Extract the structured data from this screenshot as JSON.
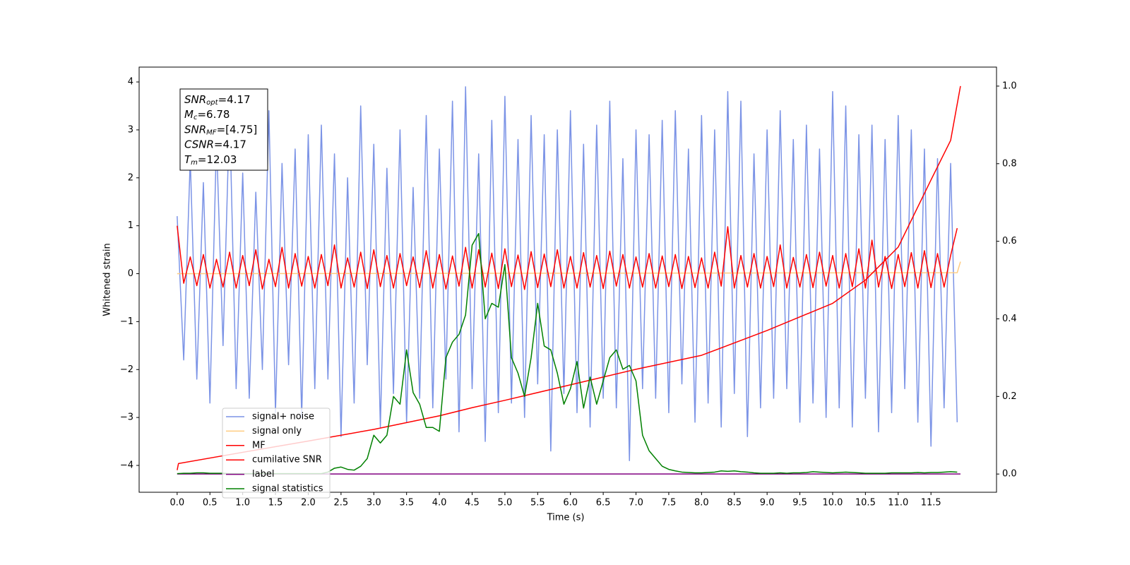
{
  "chart_data": {
    "type": "line",
    "xlabel": "Time (s)",
    "ylabel": "Whitened strain",
    "xlim": [
      -0.58,
      12.5
    ],
    "ylim": [
      -4.56,
      4.31
    ],
    "y2lim": [
      -0.047,
      1.049
    ],
    "xticks": [
      {
        "value": 0,
        "label": "0.0"
      },
      0.5,
      {
        "value": 1,
        "label": "1.0"
      },
      1.5,
      {
        "value": 2,
        "label": "2.0"
      },
      2.5,
      {
        "value": 3,
        "label": "3.0"
      },
      3.5,
      {
        "value": 4,
        "label": "4.0"
      },
      4.5,
      {
        "value": 5,
        "label": "5.0"
      },
      5.5,
      {
        "value": 6,
        "label": "6.0"
      },
      6.5,
      {
        "value": 7,
        "label": "7.0"
      },
      7.5,
      {
        "value": 8,
        "label": "8.0"
      },
      8.5,
      {
        "value": 9,
        "label": "9.0"
      },
      9.5,
      {
        "value": 10,
        "label": "10.0"
      },
      10.5,
      {
        "value": 11,
        "label": "11.0"
      },
      11.5
    ],
    "yticks": [
      {
        "value": -4,
        "label": "−4"
      },
      {
        "value": -3,
        "label": "−3"
      },
      {
        "value": -2,
        "label": "−2"
      },
      {
        "value": -1,
        "label": "−1"
      },
      0,
      1,
      2,
      3,
      4
    ],
    "y2ticks": [
      {
        "value": 0,
        "label": "0.0"
      },
      0.2,
      0.4,
      0.6,
      0.8,
      {
        "value": 1,
        "label": "1.0"
      }
    ],
    "legend_position": "lower left",
    "annotations": [
      {
        "name": "SNR",
        "sub": "opt",
        "text": "=4.17"
      },
      {
        "name": "M",
        "sub": "c",
        "text": "=6.78"
      },
      {
        "name": "SNR",
        "sub": "MF",
        "text": "=[4.75]"
      },
      {
        "name": "CSNR",
        "text": "=4.17"
      },
      {
        "name": "T",
        "sub": "m",
        "text": "=12.03"
      }
    ],
    "x": [
      0,
      0.1,
      0.2,
      0.3,
      0.4,
      0.5,
      0.6,
      0.7,
      0.8,
      0.9,
      1,
      1.1,
      1.2,
      1.3,
      1.4,
      1.5,
      1.6,
      1.7,
      1.8,
      1.9,
      2,
      2.1,
      2.2,
      2.3,
      2.4,
      2.5,
      2.6,
      2.7,
      2.8,
      2.9,
      3,
      3.1,
      3.2,
      3.3,
      3.4,
      3.5,
      3.6,
      3.7,
      3.8,
      3.9,
      4,
      4.1,
      4.2,
      4.3,
      4.4,
      4.5,
      4.6,
      4.7,
      4.8,
      4.9,
      5,
      5.1,
      5.2,
      5.3,
      5.4,
      5.5,
      5.6,
      5.7,
      5.8,
      5.9,
      6,
      6.1,
      6.2,
      6.3,
      6.4,
      6.5,
      6.6,
      6.7,
      6.8,
      6.9,
      7,
      7.1,
      7.2,
      7.3,
      7.4,
      7.5,
      7.6,
      7.7,
      7.8,
      7.9,
      8,
      8.1,
      8.2,
      8.3,
      8.4,
      8.5,
      8.6,
      8.7,
      8.8,
      8.9,
      9,
      9.1,
      9.2,
      9.3,
      9.4,
      9.5,
      9.6,
      9.7,
      9.8,
      9.9,
      10,
      10.1,
      10.2,
      10.3,
      10.4,
      10.5,
      10.6,
      10.7,
      10.8,
      10.9,
      11,
      11.1,
      11.2,
      11.3,
      11.4,
      11.5,
      11.6,
      11.7,
      11.8,
      11.9
    ],
    "series": [
      {
        "name": "signal+ noise",
        "color": "#7b93e6",
        "values": [
          1.2,
          -1.8,
          2.4,
          -2.2,
          1.9,
          -2.7,
          2.8,
          -1.5,
          3.4,
          -2.4,
          2.1,
          -2.6,
          1.7,
          -2.0,
          3.4,
          -2.9,
          2.3,
          -1.9,
          2.6,
          -3.0,
          2.9,
          -2.4,
          3.1,
          -2.2,
          2.5,
          -3.4,
          2.0,
          -2.7,
          3.5,
          -1.9,
          2.7,
          -3.2,
          2.2,
          -2.5,
          3.0,
          -3.1,
          1.8,
          -2.6,
          3.3,
          -2.8,
          2.6,
          -2.2,
          3.6,
          -3.3,
          3.9,
          -2.4,
          2.5,
          -3.5,
          3.2,
          -2.9,
          3.7,
          -2.7,
          2.8,
          -3.0,
          3.3,
          -2.3,
          2.9,
          -3.7,
          3.0,
          -2.5,
          3.4,
          -2.9,
          2.7,
          -3.2,
          3.1,
          -2.6,
          3.6,
          -2.8,
          2.4,
          -3.9,
          3.0,
          -2.4,
          2.9,
          -2.6,
          3.2,
          -2.9,
          3.4,
          -2.3,
          2.6,
          -3.1,
          3.3,
          -2.7,
          3.0,
          -3.2,
          3.8,
          -2.5,
          3.6,
          -3.4,
          2.5,
          -2.8,
          3.0,
          -2.6,
          3.4,
          -2.4,
          2.8,
          -3.1,
          3.1,
          -2.7,
          2.6,
          -3.0,
          3.8,
          -2.8,
          3.5,
          -3.2,
          2.9,
          -2.6,
          3.1,
          -3.3,
          2.8,
          -2.9,
          3.3,
          -2.4,
          3.0,
          -3.1,
          2.6,
          -3.6,
          2.4,
          -2.8,
          2.3,
          -3.1
        ]
      },
      {
        "name": "signal only",
        "color": "#ffcc80",
        "x": [
          0,
          11.9,
          11.95
        ],
        "values": [
          0,
          0.02,
          0.25
        ]
      },
      {
        "name": "MF",
        "color": "#ff0000",
        "values": [
          1.0,
          -0.2,
          0.35,
          -0.25,
          0.4,
          -0.3,
          0.3,
          -0.28,
          0.45,
          -0.3,
          0.38,
          -0.25,
          0.5,
          -0.32,
          0.3,
          -0.27,
          0.55,
          -0.3,
          0.42,
          -0.26,
          0.36,
          -0.3,
          0.4,
          -0.25,
          0.6,
          -0.3,
          0.33,
          -0.28,
          0.45,
          -0.31,
          0.5,
          -0.27,
          0.38,
          -0.3,
          0.42,
          -0.25,
          0.35,
          -0.29,
          0.48,
          -0.3,
          0.4,
          -0.32,
          0.37,
          -0.26,
          0.55,
          -0.3,
          0.5,
          -0.28,
          0.43,
          -0.31,
          0.52,
          -0.27,
          0.39,
          -0.33,
          0.46,
          -0.29,
          0.41,
          -0.27,
          0.5,
          -0.3,
          0.36,
          -0.3,
          0.44,
          -0.28,
          0.38,
          -0.31,
          0.47,
          -0.26,
          0.4,
          -0.3,
          0.35,
          -0.28,
          0.42,
          -0.3,
          0.37,
          -0.27,
          0.4,
          -0.31,
          0.36,
          -0.29,
          0.33,
          -0.3,
          0.45,
          -0.26,
          0.98,
          -0.3,
          0.38,
          -0.28,
          0.42,
          -0.3,
          0.36,
          -0.27,
          0.6,
          -0.3,
          0.34,
          -0.28,
          0.4,
          -0.29,
          0.45,
          -0.26,
          0.38,
          -0.3,
          0.42,
          -0.27,
          0.52,
          -0.3,
          0.7,
          -0.28,
          0.36,
          -0.31,
          0.4,
          -0.27,
          0.44,
          -0.3,
          0.48,
          -0.29,
          0.42,
          -0.28,
          0.38,
          0.95
        ]
      },
      {
        "name": "cumilative SNR",
        "color": "#ff0000",
        "axis": "y2",
        "x": [
          0,
          0.02,
          1,
          2,
          3,
          4,
          4.5,
          5,
          6,
          7,
          8,
          9,
          10,
          10.5,
          11,
          11.5,
          11.8,
          11.95
        ],
        "values": [
          0.01,
          0.027,
          0.056,
          0.085,
          0.115,
          0.15,
          0.171,
          0.19,
          0.23,
          0.27,
          0.306,
          0.37,
          0.44,
          0.5,
          0.585,
          0.758,
          0.86,
          1.0
        ]
      },
      {
        "name": "label",
        "color": "#800080",
        "axis": "y2",
        "x": [
          0,
          11.95
        ],
        "values": [
          0,
          0
        ]
      },
      {
        "name": "signal statistics",
        "color": "#008000",
        "axis": "y2",
        "values": [
          0.001,
          0.002,
          0.002,
          0.003,
          0.003,
          0.002,
          0.002,
          0.002,
          0.001,
          0.001,
          0.001,
          0.001,
          0.001,
          0.001,
          0.001,
          0.001,
          0.001,
          0.001,
          0.001,
          0.001,
          0.001,
          0.001,
          0.001,
          0.005,
          0.015,
          0.018,
          0.012,
          0.01,
          0.02,
          0.04,
          0.1,
          0.08,
          0.1,
          0.2,
          0.18,
          0.32,
          0.21,
          0.18,
          0.12,
          0.12,
          0.11,
          0.3,
          0.34,
          0.36,
          0.41,
          0.59,
          0.62,
          0.4,
          0.44,
          0.43,
          0.54,
          0.3,
          0.26,
          0.2,
          0.3,
          0.44,
          0.33,
          0.32,
          0.26,
          0.18,
          0.22,
          0.29,
          0.17,
          0.25,
          0.18,
          0.24,
          0.3,
          0.32,
          0.27,
          0.28,
          0.24,
          0.1,
          0.06,
          0.04,
          0.02,
          0.012,
          0.008,
          0.005,
          0.004,
          0.003,
          0.003,
          0.004,
          0.005,
          0.008,
          0.007,
          0.008,
          0.006,
          0.005,
          0.003,
          0.002,
          0.002,
          0.002,
          0.003,
          0.002,
          0.003,
          0.003,
          0.004,
          0.006,
          0.005,
          0.004,
          0.003,
          0.004,
          0.005,
          0.004,
          0.003,
          0.002,
          0.002,
          0.002,
          0.002,
          0.003,
          0.003,
          0.003,
          0.003,
          0.004,
          0.003,
          0.004,
          0.004,
          0.005,
          0.006,
          0.005
        ]
      }
    ]
  }
}
